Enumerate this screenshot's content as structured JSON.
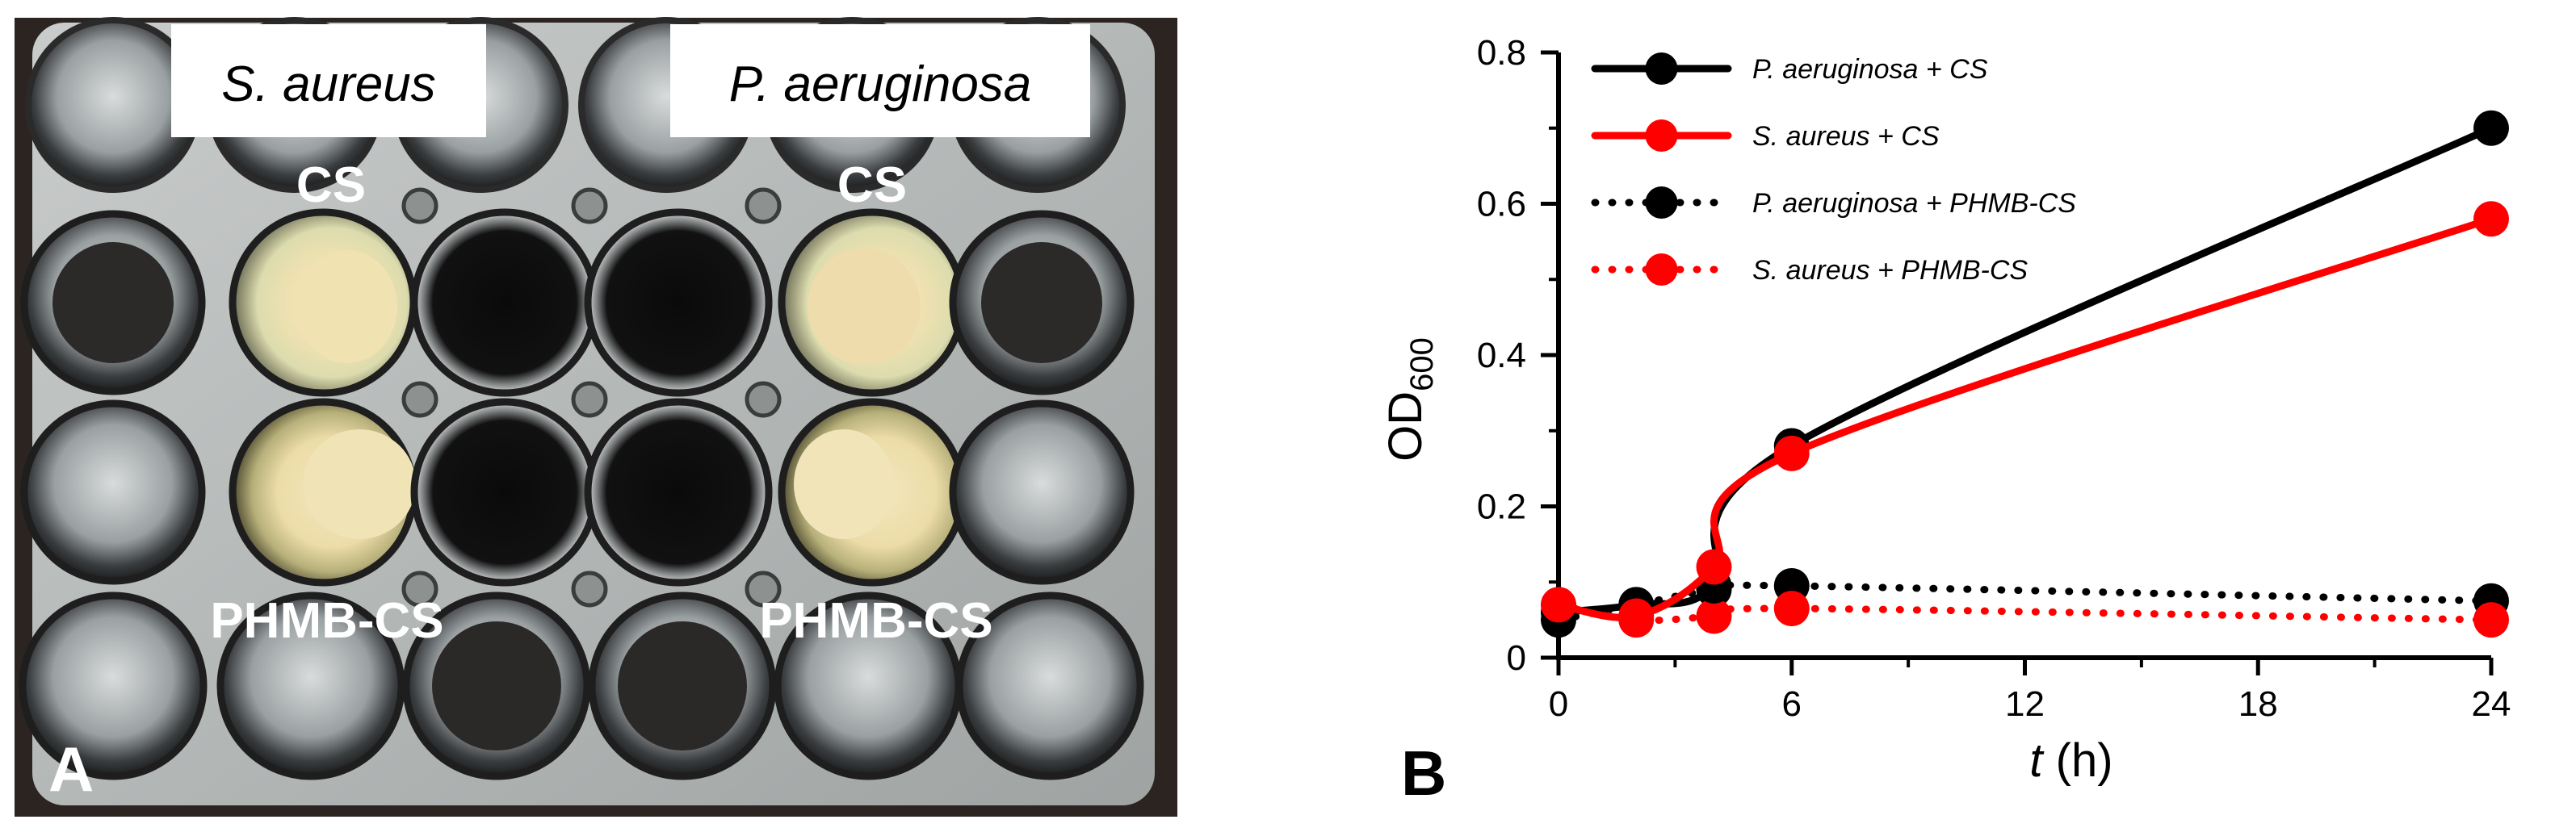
{
  "panel_a": {
    "letter": "A",
    "labels": {
      "left_organism": "S. aureus",
      "right_organism": "P. aeruginosa",
      "cs_left": "CS",
      "cs_right": "CS",
      "phmb_left": "PHMB-CS",
      "phmb_right": "PHMB-CS"
    }
  },
  "panel_b": {
    "letter": "B"
  },
  "chart_data": {
    "type": "line",
    "xlabel_italic": "t",
    "xlabel_unit": "(h)",
    "ylabel_main": "OD",
    "ylabel_sub": "600",
    "xlim": [
      0,
      24
    ],
    "ylim": [
      0,
      0.8
    ],
    "xticks": [
      "0",
      "6",
      "12",
      "18",
      "24"
    ],
    "yticks": [
      "0",
      "0.2",
      "0.4",
      "0.6",
      "0.8"
    ],
    "xtick_values": [
      0,
      6,
      12,
      18,
      24
    ],
    "ytick_values": [
      0,
      0.2,
      0.4,
      0.6,
      0.8
    ],
    "grid": false,
    "legend_position": "top-left",
    "series": [
      {
        "name": "P. aeruginosa + CS",
        "color": "#000000",
        "style": "solid",
        "x": [
          0,
          2,
          4,
          6,
          24
        ],
        "y": [
          0.06,
          0.07,
          0.095,
          0.28,
          0.7
        ]
      },
      {
        "name": "S. aureus + CS",
        "color": "#ff0000",
        "style": "solid",
        "x": [
          0,
          2,
          4,
          6,
          24
        ],
        "y": [
          0.07,
          0.055,
          0.12,
          0.27,
          0.58
        ]
      },
      {
        "name": "P. aeruginosa + PHMB-CS",
        "color": "#000000",
        "style": "dotted",
        "x": [
          0,
          2,
          4,
          6,
          24
        ],
        "y": [
          0.05,
          0.07,
          0.09,
          0.095,
          0.075
        ]
      },
      {
        "name": "S. aureus + PHMB-CS",
        "color": "#ff0000",
        "style": "dotted",
        "x": [
          0,
          2,
          4,
          6,
          24
        ],
        "y": [
          0.07,
          0.05,
          0.055,
          0.065,
          0.05
        ]
      }
    ]
  }
}
